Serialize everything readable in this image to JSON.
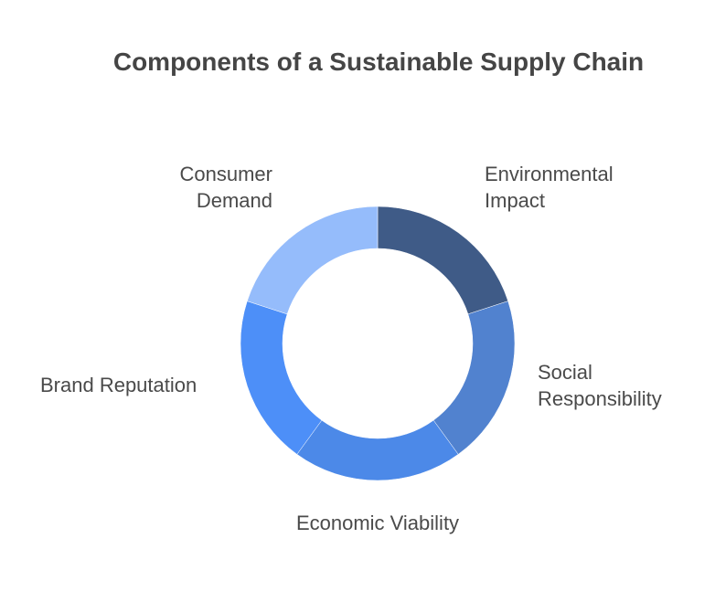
{
  "title": "Components of a Sustainable Supply Chain",
  "segments": [
    {
      "label": "Environmental\nImpact",
      "color": "#3f5b87"
    },
    {
      "label": "Social\nResponsibility",
      "color": "#5182cf"
    },
    {
      "label": "Economic Viability",
      "color": "#4c89e8"
    },
    {
      "label": "Brand Reputation",
      "color": "#4d8ff8"
    },
    {
      "label": "Consumer\nDemand",
      "color": "#95bcfb"
    }
  ]
}
